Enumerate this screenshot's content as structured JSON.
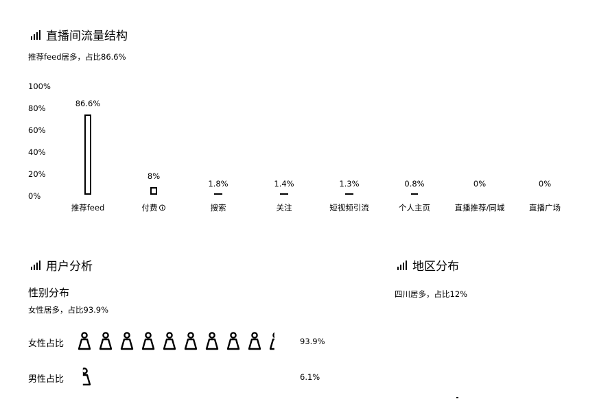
{
  "traffic": {
    "title": "直播间流量结构",
    "summary": "推荐feed居多，占比86.6%",
    "chart_data": {
      "type": "bar",
      "categories": [
        "推荐feed",
        "付费",
        "搜索",
        "关注",
        "短视频引流",
        "个人主页",
        "直播推荐/同城",
        "直播广场"
      ],
      "values": [
        86.6,
        8,
        1.8,
        1.4,
        1.3,
        0.8,
        0,
        0
      ],
      "value_labels": [
        "86.6%",
        "8%",
        "1.8%",
        "1.4%",
        "1.3%",
        "0.8%",
        "0%",
        "0%"
      ],
      "yticks": [
        "100%",
        "80%",
        "60%",
        "40%",
        "20%",
        "0%"
      ],
      "ylim": [
        0,
        100
      ],
      "grid": false
    }
  },
  "users": {
    "title": "用户分析",
    "gender_title": "性别分布",
    "gender_summary": "女性居多，占比93.9%",
    "female_label": "女性占比",
    "female_value": "93.9%",
    "female_fraction": 0.939,
    "male_label": "男性占比",
    "male_value": "6.1%",
    "male_fraction": 0.061
  },
  "region": {
    "title": "地区分布",
    "summary": "四川居多，占比12%"
  },
  "icons": {
    "section_icon": "bar-chart-icon",
    "info_icon": "info-circle-icon",
    "person_icon": "person-icon"
  }
}
